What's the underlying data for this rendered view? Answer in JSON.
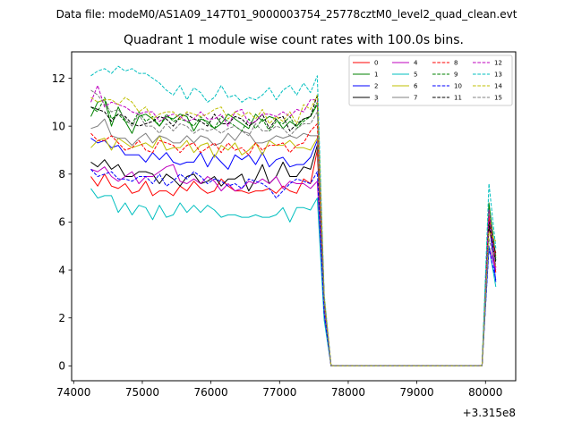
{
  "chart_data": {
    "type": "line",
    "suptitle": "Data file: modeM0/AS1A09_147T01_9000003754_25778cztM0_level2_quad_clean.evt",
    "title": "Quadrant 1 module wise count rates with 100.0s bins.",
    "xlabel": "",
    "ylabel": "",
    "x_offset_label": "+3.315e8",
    "xlim": [
      73970,
      80440
    ],
    "ylim": [
      -0.62,
      13.1
    ],
    "x_ticks": [
      74000,
      75000,
      76000,
      77000,
      78000,
      79000,
      80000
    ],
    "y_ticks": [
      0,
      2,
      4,
      6,
      8,
      10,
      12
    ],
    "grid": false,
    "legend": {
      "placement": "top-right",
      "columns": 4
    },
    "x": [
      74250,
      74350,
      74450,
      74550,
      74650,
      74750,
      74850,
      74950,
      75050,
      75150,
      75250,
      75350,
      75450,
      75550,
      75650,
      75750,
      75850,
      75950,
      76050,
      76150,
      76250,
      76350,
      76450,
      76550,
      76650,
      76750,
      76850,
      76950,
      77050,
      77150,
      77250,
      77350,
      77450,
      77550,
      77650,
      77750,
      77850,
      77950,
      78050,
      78150,
      78250,
      78350,
      78450,
      78550,
      78650,
      78750,
      78850,
      78950,
      79050,
      79150,
      79250,
      79350,
      79450,
      79550,
      79650,
      79750,
      79850,
      79950,
      80050,
      80150
    ],
    "series": [
      {
        "name": "0",
        "color": "#ff0000",
        "dash": "solid",
        "values": [
          7.9,
          7.5,
          8.0,
          7.5,
          7.4,
          7.6,
          7.2,
          7.3,
          7.7,
          7.1,
          7.3,
          7.3,
          7.1,
          7.5,
          7.3,
          7.7,
          7.4,
          7.2,
          7.3,
          7.8,
          7.5,
          7.3,
          7.3,
          7.2,
          7.3,
          7.3,
          7.4,
          7.2,
          7.5,
          7.3,
          7.2,
          7.8,
          7.6,
          9.0,
          2.2,
          0,
          0,
          0,
          0,
          0,
          0,
          0,
          0,
          0,
          0,
          0,
          0,
          0,
          0,
          0,
          0,
          0,
          0,
          0,
          0,
          0,
          0,
          0,
          5.9,
          3.9
        ]
      },
      {
        "name": "1",
        "color": "#008000",
        "dash": "solid",
        "values": [
          10.4,
          11.0,
          11.1,
          10.0,
          10.8,
          10.2,
          9.7,
          10.4,
          10.5,
          10.3,
          10.0,
          10.4,
          10.3,
          10.5,
          10.4,
          9.8,
          10.3,
          10.2,
          9.9,
          10.1,
          10.5,
          10.3,
          10.1,
          9.9,
          10.5,
          10.2,
          10.4,
          10.3,
          9.9,
          10.2,
          10.0,
          10.3,
          10.4,
          10.9,
          2.7,
          0,
          0,
          0,
          0,
          0,
          0,
          0,
          0,
          0,
          0,
          0,
          0,
          0,
          0,
          0,
          0,
          0,
          0,
          0,
          0,
          0,
          0,
          0,
          6.8,
          4.5
        ]
      },
      {
        "name": "2",
        "color": "#0000ff",
        "dash": "solid",
        "values": [
          9.5,
          9.3,
          9.4,
          9.1,
          9.2,
          8.8,
          8.8,
          8.8,
          8.5,
          8.9,
          8.6,
          8.9,
          8.5,
          8.4,
          8.5,
          8.5,
          8.9,
          8.3,
          8.8,
          8.5,
          8.2,
          8.8,
          8.6,
          8.8,
          8.4,
          8.9,
          8.3,
          8.6,
          8.7,
          8.3,
          8.4,
          8.4,
          8.7,
          9.4,
          2.5,
          0,
          0,
          0,
          0,
          0,
          0,
          0,
          0,
          0,
          0,
          0,
          0,
          0,
          0,
          0,
          0,
          0,
          0,
          0,
          0,
          0,
          0,
          0,
          6.2,
          3.5
        ]
      },
      {
        "name": "3",
        "color": "#000000",
        "dash": "solid",
        "values": [
          8.5,
          8.3,
          8.6,
          8.2,
          8.4,
          7.9,
          7.9,
          8.1,
          8.1,
          8.0,
          7.6,
          8.0,
          7.8,
          7.5,
          7.9,
          8.0,
          7.6,
          7.7,
          7.9,
          7.5,
          7.8,
          7.8,
          8.0,
          7.3,
          7.8,
          8.4,
          7.6,
          7.9,
          8.5,
          7.9,
          7.9,
          8.3,
          8.2,
          9.2,
          2.3,
          0,
          0,
          0,
          0,
          0,
          0,
          0,
          0,
          0,
          0,
          0,
          0,
          0,
          0,
          0,
          0,
          0,
          0,
          0,
          0,
          0,
          0,
          0,
          5.8,
          4.7
        ]
      },
      {
        "name": "4",
        "color": "#bf00bf",
        "dash": "solid",
        "values": [
          8.2,
          8.1,
          8.3,
          7.9,
          7.7,
          7.9,
          8.1,
          7.6,
          7.9,
          7.9,
          8.1,
          8.3,
          8.4,
          7.7,
          7.6,
          7.8,
          7.6,
          7.9,
          7.7,
          7.3,
          7.6,
          7.3,
          7.4,
          7.7,
          7.6,
          7.8,
          7.6,
          7.9,
          7.4,
          7.7,
          7.6,
          7.6,
          7.4,
          7.7,
          2.1,
          0,
          0,
          0,
          0,
          0,
          0,
          0,
          0,
          0,
          0,
          0,
          0,
          0,
          0,
          0,
          0,
          0,
          0,
          0,
          0,
          0,
          0,
          0,
          5.0,
          4.0
        ]
      },
      {
        "name": "5",
        "color": "#00bfbf",
        "dash": "solid",
        "values": [
          7.4,
          7.0,
          7.1,
          7.1,
          6.4,
          6.8,
          6.3,
          6.7,
          6.6,
          6.1,
          6.7,
          6.2,
          6.3,
          6.8,
          6.4,
          6.7,
          6.4,
          6.7,
          6.5,
          6.2,
          6.3,
          6.3,
          6.2,
          6.2,
          6.3,
          6.2,
          6.2,
          6.3,
          6.6,
          6.0,
          6.6,
          6.6,
          6.5,
          7.0,
          1.9,
          0,
          0,
          0,
          0,
          0,
          0,
          0,
          0,
          0,
          0,
          0,
          0,
          0,
          0,
          0,
          0,
          0,
          0,
          0,
          0,
          0,
          0,
          0,
          5.0,
          3.3
        ]
      },
      {
        "name": "6",
        "color": "#bfbf00",
        "dash": "solid",
        "values": [
          9.1,
          9.4,
          9.5,
          9.0,
          9.5,
          9.3,
          9.1,
          9.2,
          9.3,
          9.1,
          9.6,
          9.0,
          9.1,
          9.1,
          9.4,
          8.9,
          9.2,
          9.3,
          8.7,
          9.2,
          9.0,
          9.3,
          8.8,
          9.0,
          9.3,
          8.8,
          9.4,
          9.2,
          9.2,
          9.4,
          9.1,
          9.1,
          9.0,
          9.5,
          2.6,
          0,
          0,
          0,
          0,
          0,
          0,
          0,
          0,
          0,
          0,
          0,
          0,
          0,
          0,
          0,
          0,
          0,
          0,
          0,
          0,
          0,
          0,
          0,
          6.4,
          4.1
        ]
      },
      {
        "name": "7",
        "color": "#808080",
        "dash": "solid",
        "values": [
          9.9,
          10.0,
          10.3,
          9.6,
          9.5,
          9.5,
          9.2,
          9.5,
          9.7,
          9.3,
          9.6,
          9.5,
          9.3,
          9.3,
          9.6,
          9.3,
          9.6,
          9.5,
          9.2,
          9.3,
          9.7,
          9.4,
          9.8,
          9.7,
          9.3,
          9.3,
          9.4,
          9.6,
          9.5,
          9.6,
          9.5,
          9.7,
          9.6,
          9.6,
          2.4,
          0,
          0,
          0,
          0,
          0,
          0,
          0,
          0,
          0,
          0,
          0,
          0,
          0,
          0,
          0,
          0,
          0,
          0,
          0,
          0,
          0,
          0,
          0,
          6.0,
          4.4
        ]
      },
      {
        "name": "8",
        "color": "#ff0000",
        "dash": "dashed",
        "values": [
          9.7,
          9.4,
          9.4,
          9.6,
          9.3,
          9.0,
          9.1,
          9.4,
          9.0,
          8.9,
          9.4,
          9.3,
          9.2,
          8.9,
          9.2,
          9.3,
          8.9,
          9.1,
          9.3,
          8.9,
          9.3,
          9.0,
          9.1,
          8.8,
          9.3,
          9.0,
          9.2,
          9.2,
          9.3,
          8.9,
          9.2,
          9.3,
          9.8,
          10.1,
          2.6,
          0,
          0,
          0,
          0,
          0,
          0,
          0,
          0,
          0,
          0,
          0,
          0,
          0,
          0,
          0,
          0,
          0,
          0,
          0,
          0,
          0,
          0,
          0,
          6.2,
          4.6
        ]
      },
      {
        "name": "9",
        "color": "#008000",
        "dash": "dashed",
        "values": [
          10.8,
          10.6,
          11.2,
          10.3,
          10.5,
          10.2,
          10.1,
          10.6,
          10.2,
          10.4,
          10.0,
          10.5,
          10.2,
          10.3,
          10.2,
          10.0,
          10.4,
          10.1,
          9.9,
          10.4,
          10.2,
          10.0,
          9.8,
          10.3,
          9.9,
          10.3,
          9.8,
          10.2,
          10.1,
          10.4,
          9.9,
          10.2,
          10.4,
          11.0,
          2.8,
          0,
          0,
          0,
          0,
          0,
          0,
          0,
          0,
          0,
          0,
          0,
          0,
          0,
          0,
          0,
          0,
          0,
          0,
          0,
          0,
          0,
          0,
          0,
          6.7,
          4.4
        ]
      },
      {
        "name": "10",
        "color": "#0000ff",
        "dash": "dashed",
        "values": [
          8.2,
          7.9,
          8.0,
          8.1,
          7.8,
          7.8,
          7.7,
          7.9,
          7.9,
          7.6,
          8.0,
          7.5,
          7.7,
          8.0,
          7.8,
          8.1,
          7.9,
          7.6,
          7.8,
          7.7,
          7.5,
          7.6,
          7.4,
          7.8,
          7.7,
          7.6,
          7.4,
          7.0,
          7.3,
          7.6,
          7.8,
          7.7,
          7.6,
          8.1,
          2.2,
          0,
          0,
          0,
          0,
          0,
          0,
          0,
          0,
          0,
          0,
          0,
          0,
          0,
          0,
          0,
          0,
          0,
          0,
          0,
          0,
          0,
          0,
          0,
          4.9,
          3.6
        ]
      },
      {
        "name": "11",
        "color": "#000000",
        "dash": "dashed",
        "values": [
          10.8,
          10.7,
          10.6,
          10.2,
          10.5,
          10.4,
          10.1,
          10.0,
          10.1,
          10.2,
          10.4,
          10.3,
          10.0,
          10.4,
          10.5,
          10.3,
          10.2,
          10.0,
          10.5,
          10.1,
          10.1,
          10.4,
          10.3,
          10.0,
          10.2,
          10.5,
          9.9,
          10.3,
          10.4,
          9.8,
          10.1,
          10.3,
          10.4,
          11.3,
          2.8,
          0,
          0,
          0,
          0,
          0,
          0,
          0,
          0,
          0,
          0,
          0,
          0,
          0,
          0,
          0,
          0,
          0,
          0,
          0,
          0,
          0,
          0,
          0,
          6.0,
          4.3
        ]
      },
      {
        "name": "12",
        "color": "#bf00bf",
        "dash": "dashed",
        "values": [
          11.0,
          11.7,
          10.8,
          11.0,
          10.9,
          10.8,
          10.6,
          10.5,
          10.6,
          10.6,
          10.2,
          10.4,
          10.5,
          10.4,
          10.2,
          10.3,
          10.6,
          10.3,
          10.3,
          10.5,
          10.0,
          10.6,
          10.7,
          10.1,
          10.2,
          10.5,
          10.5,
          10.4,
          10.6,
          10.4,
          10.7,
          10.6,
          11.1,
          11.1,
          2.9,
          0,
          0,
          0,
          0,
          0,
          0,
          0,
          0,
          0,
          0,
          0,
          0,
          0,
          0,
          0,
          0,
          0,
          0,
          0,
          0,
          0,
          0,
          0,
          6.5,
          4.1
        ]
      },
      {
        "name": "13",
        "color": "#00bfbf",
        "dash": "dashed",
        "values": [
          12.1,
          12.3,
          12.4,
          12.2,
          12.5,
          12.3,
          12.4,
          12.2,
          12.2,
          12.0,
          11.8,
          11.5,
          11.3,
          11.7,
          11.1,
          11.6,
          11.4,
          11.0,
          11.2,
          11.7,
          11.2,
          11.3,
          11.0,
          11.2,
          11.1,
          11.3,
          11.6,
          11.1,
          11.5,
          11.7,
          11.3,
          11.8,
          11.4,
          12.1,
          3.0,
          0,
          0,
          0,
          0,
          0,
          0,
          0,
          0,
          0,
          0,
          0,
          0,
          0,
          0,
          0,
          0,
          0,
          0,
          0,
          0,
          0,
          0,
          0,
          7.6,
          4.9
        ]
      },
      {
        "name": "14",
        "color": "#bfbf00",
        "dash": "dashed",
        "values": [
          11.2,
          11.0,
          11.1,
          11.1,
          10.9,
          11.2,
          11.0,
          10.6,
          10.8,
          10.3,
          10.5,
          10.6,
          10.6,
          10.3,
          10.6,
          10.5,
          10.4,
          10.5,
          10.7,
          10.8,
          10.3,
          10.6,
          10.4,
          10.6,
          10.3,
          10.7,
          10.1,
          10.4,
          10.2,
          10.6,
          10.1,
          10.9,
          10.7,
          11.3,
          2.9,
          0,
          0,
          0,
          0,
          0,
          0,
          0,
          0,
          0,
          0,
          0,
          0,
          0,
          0,
          0,
          0,
          0,
          0,
          0,
          0,
          0,
          0,
          0,
          5.6,
          5.2
        ]
      },
      {
        "name": "15",
        "color": "#808080",
        "dash": "dashed",
        "values": [
          11.5,
          11.3,
          10.9,
          10.6,
          10.7,
          10.3,
          10.0,
          10.5,
          10.0,
          10.0,
          9.7,
          10.1,
          9.8,
          10.1,
          10.0,
          9.7,
          9.9,
          9.8,
          9.9,
          9.7,
          9.9,
          10.0,
          9.8,
          9.6,
          10.1,
          9.8,
          9.8,
          10.0,
          9.9,
          9.6,
          9.9,
          10.1,
          10.1,
          10.6,
          2.7,
          0,
          0,
          0,
          0,
          0,
          0,
          0,
          0,
          0,
          0,
          0,
          0,
          0,
          0,
          0,
          0,
          0,
          0,
          0,
          0,
          0,
          0,
          0,
          5.3,
          4.2
        ]
      }
    ]
  }
}
